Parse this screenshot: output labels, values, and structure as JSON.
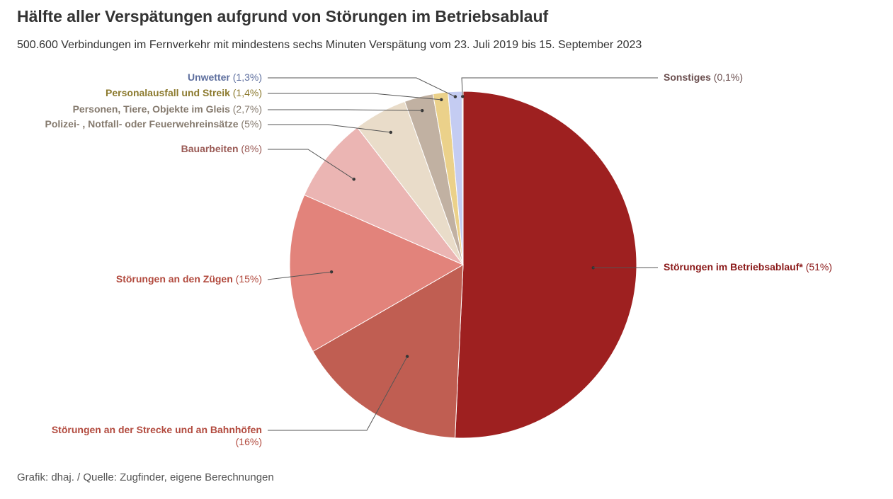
{
  "title": "Hälfte aller Verspätungen aufgrund von Störungen im Betriebsablauf",
  "subtitle": "500.600 Verbindungen im Fernverkehr mit mindestens sechs Minuten Verspätung vom 23. Juli 2019 bis 15. September 2023",
  "footer": "Grafik: dhaj. / Quelle: Zugfinder, eigene Berechnungen",
  "chart_data": {
    "type": "pie",
    "start": "12 o'clock",
    "direction": "clockwise",
    "slices": [
      {
        "name": "Störungen im Betriebsablauf*",
        "pct_label": "(51%)",
        "value": 51,
        "color": "#9e2020",
        "label_color": "#8b1a1a"
      },
      {
        "name": "Störungen an der Strecke und an Bahnhöfen",
        "pct_label": "(16%)",
        "value": 16,
        "color": "#c05e52",
        "label_color": "#b24a3e"
      },
      {
        "name": "Störungen an den Zügen",
        "pct_label": "(15%)",
        "value": 15,
        "color": "#e2837b",
        "label_color": "#b24a3e"
      },
      {
        "name": "Bauarbeiten",
        "pct_label": "(8%)",
        "value": 8,
        "color": "#ebb5b3",
        "label_color": "#9a5a55"
      },
      {
        "name": "Polizei- , Notfall- oder Feuerwehreinsätze",
        "pct_label": "(5%)",
        "value": 5,
        "color": "#e9dcc9",
        "label_color": "#857a6e"
      },
      {
        "name": "Personen, Tiere, Objekte im Gleis",
        "pct_label": "(2,7%)",
        "value": 2.7,
        "color": "#c1b1a2",
        "label_color": "#857a6e"
      },
      {
        "name": "Personalausfall und Streik",
        "pct_label": "(1,4%)",
        "value": 1.4,
        "color": "#ebd18a",
        "label_color": "#8c7a2e"
      },
      {
        "name": "Unwetter",
        "pct_label": "(1,3%)",
        "value": 1.3,
        "color": "#c4ccf2",
        "label_color": "#5e6f9e"
      },
      {
        "name": "Sonstiges",
        "pct_label": "(0,1%)",
        "value": 0.1,
        "color": "#d9d9d9",
        "label_color": "#6b4f4f"
      }
    ]
  }
}
